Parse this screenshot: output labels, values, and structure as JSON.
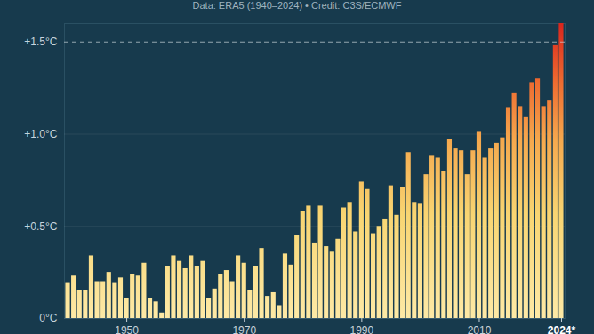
{
  "chart_data": {
    "type": "bar",
    "subtitle": "Data: ERA5 (1940–2024) • Credit: C3S/ECMWF",
    "categories": [
      1940,
      1941,
      1942,
      1943,
      1944,
      1945,
      1946,
      1947,
      1948,
      1949,
      1950,
      1951,
      1952,
      1953,
      1954,
      1955,
      1956,
      1957,
      1958,
      1959,
      1960,
      1961,
      1962,
      1963,
      1964,
      1965,
      1966,
      1967,
      1968,
      1969,
      1970,
      1971,
      1972,
      1973,
      1974,
      1975,
      1976,
      1977,
      1978,
      1979,
      1980,
      1981,
      1982,
      1983,
      1984,
      1985,
      1986,
      1987,
      1988,
      1989,
      1990,
      1991,
      1992,
      1993,
      1994,
      1995,
      1996,
      1997,
      1998,
      1999,
      2000,
      2001,
      2002,
      2003,
      2004,
      2005,
      2006,
      2007,
      2008,
      2009,
      2010,
      2011,
      2012,
      2013,
      2014,
      2015,
      2016,
      2017,
      2018,
      2019,
      2020,
      2021,
      2022,
      2023,
      2024
    ],
    "values": [
      0.19,
      0.23,
      0.15,
      0.15,
      0.34,
      0.2,
      0.2,
      0.25,
      0.19,
      0.22,
      0.11,
      0.24,
      0.23,
      0.3,
      0.11,
      0.09,
      0.03,
      0.28,
      0.34,
      0.31,
      0.27,
      0.34,
      0.28,
      0.31,
      0.11,
      0.16,
      0.24,
      0.26,
      0.2,
      0.34,
      0.3,
      0.15,
      0.28,
      0.38,
      0.12,
      0.14,
      0.07,
      0.35,
      0.29,
      0.45,
      0.58,
      0.61,
      0.41,
      0.61,
      0.39,
      0.36,
      0.43,
      0.6,
      0.63,
      0.47,
      0.74,
      0.7,
      0.46,
      0.5,
      0.54,
      0.72,
      0.56,
      0.71,
      0.9,
      0.63,
      0.62,
      0.78,
      0.88,
      0.87,
      0.8,
      0.97,
      0.92,
      0.91,
      0.78,
      0.91,
      1.01,
      0.87,
      0.92,
      0.95,
      0.98,
      1.14,
      1.22,
      1.15,
      1.09,
      1.28,
      1.3,
      1.15,
      1.18,
      1.48,
      1.6
    ],
    "ylim": [
      0,
      1.6
    ],
    "yticks": [
      {
        "value": 0,
        "label": "0°C"
      },
      {
        "value": 0.5,
        "label": "+0.5°C"
      },
      {
        "value": 1.0,
        "label": "+1.0°C"
      },
      {
        "value": 1.5,
        "label": "+1.5°C"
      }
    ],
    "xticks": [
      1950,
      1970,
      1990,
      2010,
      {
        "value": 2024,
        "label": "2024*"
      }
    ],
    "reference_line": 1.5,
    "grid": true
  }
}
